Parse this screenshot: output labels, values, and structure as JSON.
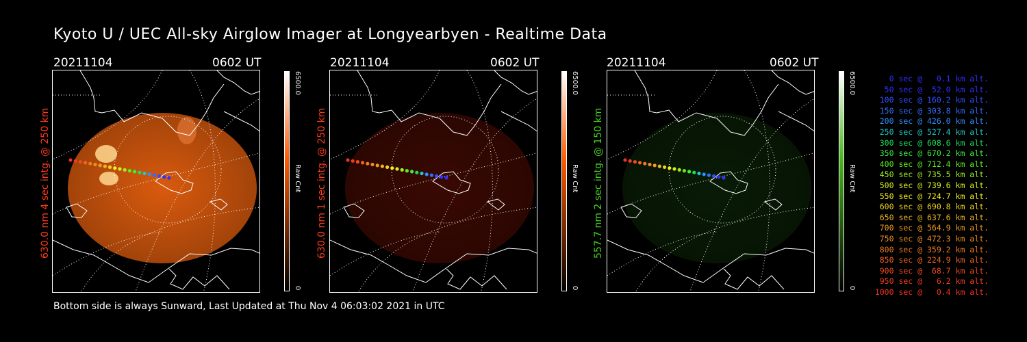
{
  "title": "Kyoto U / UEC All-sky Airglow Imager at Longyearbyen - Realtime Data",
  "footer": "Bottom side is always Sunward, Last Updated at Thu Nov  4 06:03:02 2021 in UTC",
  "panels": [
    {
      "date": "20211104",
      "time": "0602 UT",
      "side_label": "630.0 nm 4 sec intg. @ 250 km",
      "label_color": "#ff3a1a",
      "cbar_max": "6500.0",
      "cbar_min": "0",
      "cbar_unit": "Raw Cnt",
      "cbar_color": "#ff5a00",
      "glow_color": "#ff6a10",
      "glow_intensity": 0.85
    },
    {
      "date": "20211104",
      "time": "0602 UT",
      "side_label": "630.0 nm 1 sec intg. @ 250 km",
      "label_color": "#ff3a1a",
      "cbar_max": "6500.0",
      "cbar_min": "0",
      "cbar_unit": "Raw Cnt",
      "cbar_color": "#ff5a00",
      "glow_color": "#a51a08",
      "glow_intensity": 0.35
    },
    {
      "date": "20211104",
      "time": "0602 UT",
      "side_label": "557.7 nm 2 sec intg. @ 150 km",
      "label_color": "#46d21e",
      "cbar_max": "6500.0",
      "cbar_min": "0",
      "cbar_unit": "Raw Cnt",
      "cbar_color": "#4ab41e",
      "glow_color": "#1e5a14",
      "glow_intensity": 0.3
    }
  ],
  "legend": [
    {
      "text": "  0 sec @   0.1 km alt.",
      "color": "#3030ff"
    },
    {
      "text": " 50 sec @  52.0 km alt.",
      "color": "#3030ff"
    },
    {
      "text": "100 sec @ 160.2 km alt.",
      "color": "#3050ff"
    },
    {
      "text": "150 sec @ 303.8 km alt.",
      "color": "#2f6fff"
    },
    {
      "text": "200 sec @ 426.0 km alt.",
      "color": "#2f8fff"
    },
    {
      "text": "250 sec @ 527.4 km alt.",
      "color": "#1ec8c8"
    },
    {
      "text": "300 sec @ 608.6 km alt.",
      "color": "#1ee05a"
    },
    {
      "text": "350 sec @ 670.2 km alt.",
      "color": "#3cf03c"
    },
    {
      "text": "400 sec @ 712.4 km alt.",
      "color": "#5af01e"
    },
    {
      "text": "450 sec @ 735.5 km alt.",
      "color": "#a0f01e"
    },
    {
      "text": "500 sec @ 739.6 km alt.",
      "color": "#d2f01e"
    },
    {
      "text": "550 sec @ 724.7 km alt.",
      "color": "#f0f01e"
    },
    {
      "text": "600 sec @ 690.8 km alt.",
      "color": "#f0d21e"
    },
    {
      "text": "650 sec @ 637.6 km alt.",
      "color": "#f0b41e"
    },
    {
      "text": "700 sec @ 564.9 km alt.",
      "color": "#f09a1e"
    },
    {
      "text": "750 sec @ 472.3 km alt.",
      "color": "#f08c1e"
    },
    {
      "text": "800 sec @ 359.2 km alt.",
      "color": "#f07a1e"
    },
    {
      "text": "850 sec @ 224.9 km alt.",
      "color": "#f0641e"
    },
    {
      "text": "900 sec @  68.7 km alt.",
      "color": "#f04b1e"
    },
    {
      "text": "950 sec @   6.2 km alt.",
      "color": "#f03c1e"
    },
    {
      "text": "1000 sec @   0.4 km alt.",
      "color": "#f0321e"
    }
  ]
}
